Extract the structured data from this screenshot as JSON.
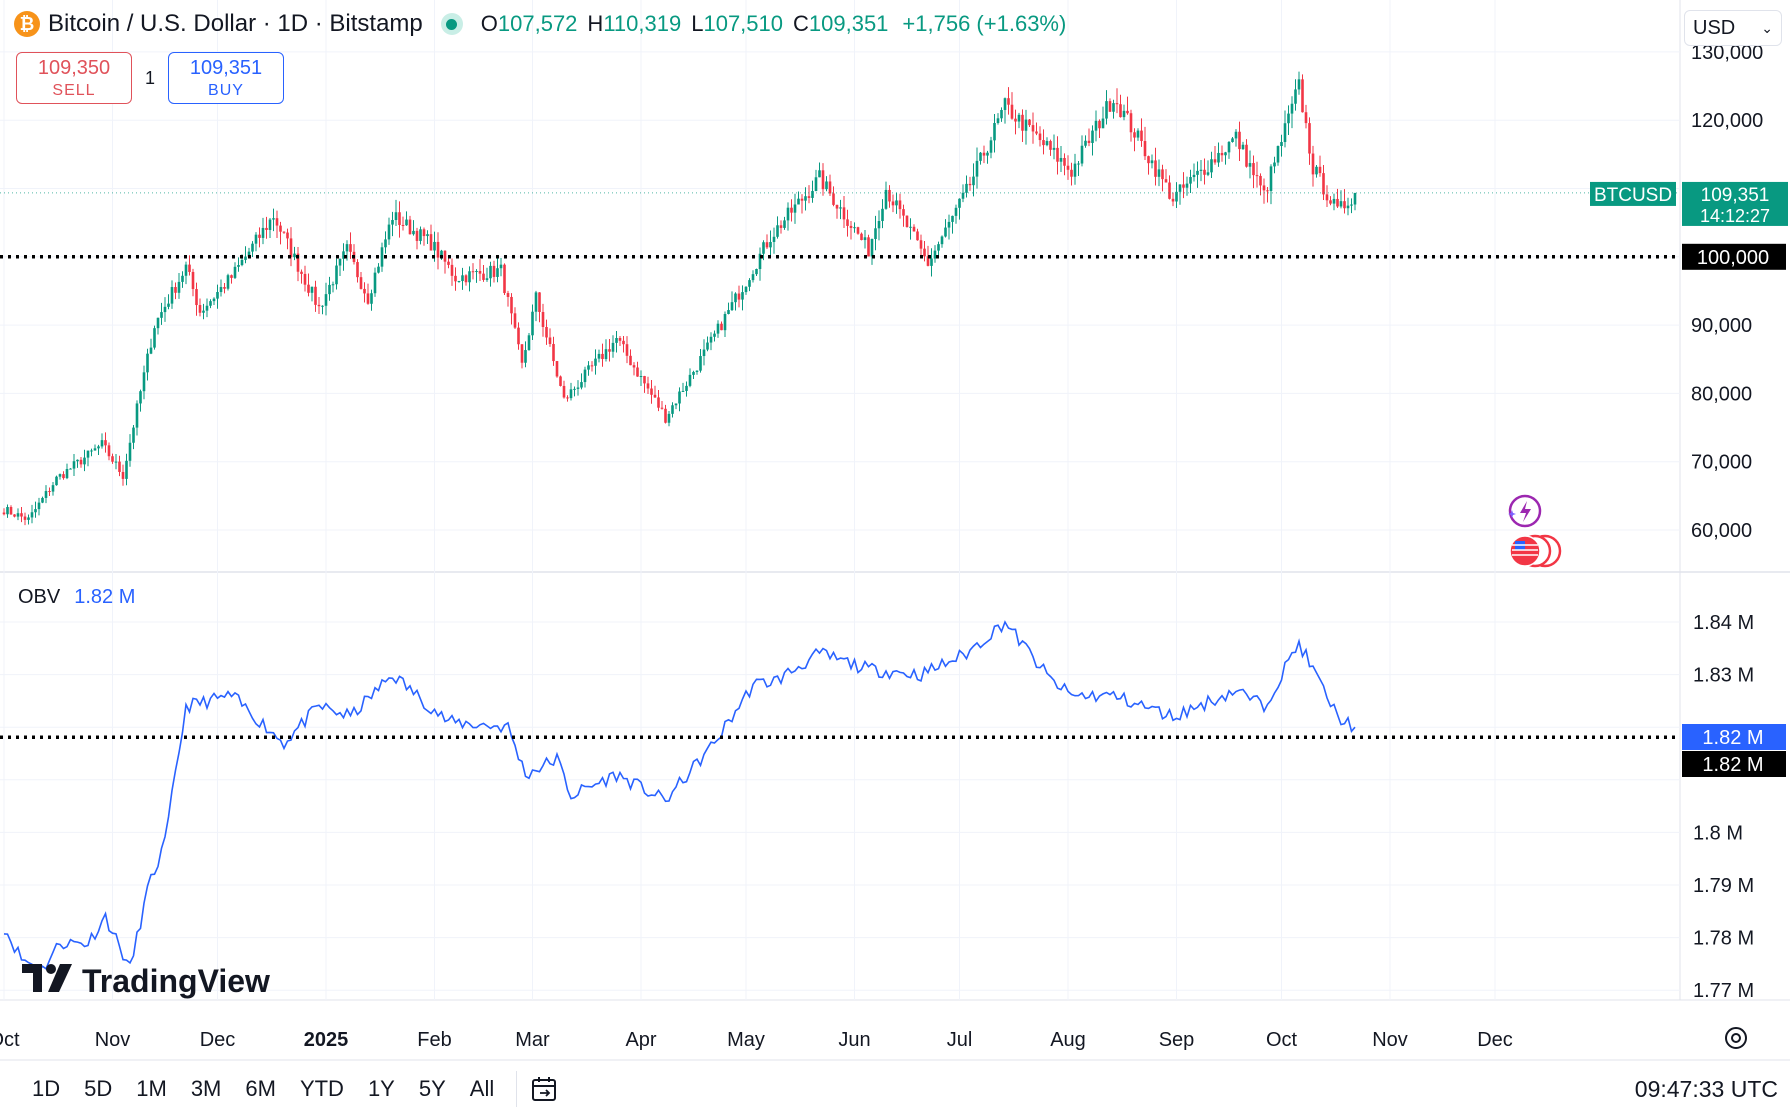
{
  "header": {
    "coin_icon": "bitcoin-icon",
    "coin_glyph": "₿",
    "title": "Bitcoin / U.S. Dollar · 1D · Bitstamp",
    "ohlc": {
      "o_label": "O",
      "o": "107,572",
      "h_label": "H",
      "h": "110,319",
      "l_label": "L",
      "l": "107,510",
      "c_label": "C",
      "c": "109,351"
    },
    "change": "+1,756 (+1.63%)"
  },
  "trade": {
    "sell_price": "109,350",
    "sell_label": "SELL",
    "quantity": "1",
    "buy_price": "109,351",
    "buy_label": "BUY"
  },
  "currency": "USD",
  "price_axis": {
    "ticks": [
      "130,000",
      "120,000",
      "100,000",
      "90,000",
      "80,000",
      "70,000",
      "60,000"
    ],
    "symbol_tag": "BTCUSD",
    "last_price": "109,351",
    "countdown": "14:12:27",
    "cursor_price": "100,000"
  },
  "obv": {
    "name": "OBV",
    "value": "1.82 M",
    "ticks": [
      "1.84 M",
      "1.83 M",
      "1.8 M",
      "1.79 M",
      "1.78 M",
      "1.77 M"
    ],
    "last_label": "1.82 M",
    "cursor_label": "1.82 M"
  },
  "time_axis": [
    "Oct",
    "Nov",
    "Dec",
    "2025",
    "Feb",
    "Mar",
    "Apr",
    "May",
    "Jun",
    "Jul",
    "Aug",
    "Sep",
    "Oct",
    "Nov",
    "Dec"
  ],
  "logo": "TradingView",
  "bottom": {
    "ranges": [
      "1D",
      "5D",
      "1M",
      "3M",
      "6M",
      "YTD",
      "1Y",
      "5Y",
      "All"
    ],
    "clock": "09:47:33 UTC"
  },
  "colors": {
    "up": "#089981",
    "down": "#f23645",
    "obv_line": "#2962ff",
    "grid": "#f0f3fa"
  },
  "chart_data": [
    {
      "type": "candlestick",
      "title": "Bitcoin / U.S. Dollar · 1D · Bitstamp",
      "ylim": [
        57000,
        132000
      ],
      "key_points": [
        {
          "x": "2024-10-01",
          "y": 63000
        },
        {
          "x": "2024-10-08",
          "y": 61500
        },
        {
          "x": "2024-10-16",
          "y": 67500
        },
        {
          "x": "2024-10-29",
          "y": 72500
        },
        {
          "x": "2024-11-04",
          "y": 68000
        },
        {
          "x": "2024-11-13",
          "y": 90000
        },
        {
          "x": "2024-11-22",
          "y": 98500
        },
        {
          "x": "2024-11-26",
          "y": 92000
        },
        {
          "x": "2024-12-05",
          "y": 97000
        },
        {
          "x": "2024-12-17",
          "y": 106000
        },
        {
          "x": "2024-12-30",
          "y": 92500
        },
        {
          "x": "2025-01-07",
          "y": 101000
        },
        {
          "x": "2025-01-13",
          "y": 94000
        },
        {
          "x": "2025-01-20",
          "y": 106000
        },
        {
          "x": "2025-01-31",
          "y": 102000
        },
        {
          "x": "2025-02-07",
          "y": 97000
        },
        {
          "x": "2025-02-20",
          "y": 98000
        },
        {
          "x": "2025-02-26",
          "y": 84000
        },
        {
          "x": "2025-03-02",
          "y": 94000
        },
        {
          "x": "2025-03-10",
          "y": 79000
        },
        {
          "x": "2025-03-25",
          "y": 88000
        },
        {
          "x": "2025-04-08",
          "y": 76500
        },
        {
          "x": "2025-04-21",
          "y": 87500
        },
        {
          "x": "2025-05-01",
          "y": 96500
        },
        {
          "x": "2025-05-08",
          "y": 103000
        },
        {
          "x": "2025-05-22",
          "y": 111500
        },
        {
          "x": "2025-06-05",
          "y": 101000
        },
        {
          "x": "2025-06-10",
          "y": 110000
        },
        {
          "x": "2025-06-22",
          "y": 99000
        },
        {
          "x": "2025-07-03",
          "y": 109500
        },
        {
          "x": "2025-07-14",
          "y": 122000
        },
        {
          "x": "2025-08-02",
          "y": 112500
        },
        {
          "x": "2025-08-14",
          "y": 123500
        },
        {
          "x": "2025-08-31",
          "y": 108500
        },
        {
          "x": "2025-09-18",
          "y": 117500
        },
        {
          "x": "2025-09-26",
          "y": 109000
        },
        {
          "x": "2025-10-06",
          "y": 125000
        },
        {
          "x": "2025-10-10",
          "y": 113000
        },
        {
          "x": "2025-10-17",
          "y": 106500
        },
        {
          "x": "2025-10-22",
          "y": 109351
        }
      ],
      "last": 109351,
      "reference_line": 100000
    },
    {
      "type": "line",
      "title": "OBV",
      "ylim": [
        1.768,
        1.845
      ],
      "series": [
        {
          "name": "OBV",
          "points": [
            {
              "x": "2024-10-01",
              "y": 1.782
            },
            {
              "x": "2024-10-06",
              "y": 1.776
            },
            {
              "x": "2024-10-12",
              "y": 1.774
            },
            {
              "x": "2024-10-17",
              "y": 1.779
            },
            {
              "x": "2024-10-25",
              "y": 1.779
            },
            {
              "x": "2024-10-30",
              "y": 1.784
            },
            {
              "x": "2024-11-06",
              "y": 1.774
            },
            {
              "x": "2024-11-11",
              "y": 1.789
            },
            {
              "x": "2024-11-16",
              "y": 1.798
            },
            {
              "x": "2024-11-22",
              "y": 1.824
            },
            {
              "x": "2024-12-05",
              "y": 1.826
            },
            {
              "x": "2024-12-20",
              "y": 1.817
            },
            {
              "x": "2024-12-30",
              "y": 1.824
            },
            {
              "x": "2025-01-08",
              "y": 1.822
            },
            {
              "x": "2025-01-20",
              "y": 1.83
            },
            {
              "x": "2025-02-05",
              "y": 1.821
            },
            {
              "x": "2025-02-22",
              "y": 1.82
            },
            {
              "x": "2025-02-27",
              "y": 1.811
            },
            {
              "x": "2025-03-08",
              "y": 1.814
            },
            {
              "x": "2025-03-12",
              "y": 1.807
            },
            {
              "x": "2025-03-25",
              "y": 1.811
            },
            {
              "x": "2025-04-08",
              "y": 1.806
            },
            {
              "x": "2025-04-22",
              "y": 1.817
            },
            {
              "x": "2025-05-03",
              "y": 1.828
            },
            {
              "x": "2025-05-10",
              "y": 1.829
            },
            {
              "x": "2025-05-22",
              "y": 1.834
            },
            {
              "x": "2025-06-05",
              "y": 1.831
            },
            {
              "x": "2025-06-20",
              "y": 1.83
            },
            {
              "x": "2025-07-03",
              "y": 1.834
            },
            {
              "x": "2025-07-14",
              "y": 1.84
            },
            {
              "x": "2025-07-27",
              "y": 1.829
            },
            {
              "x": "2025-08-02",
              "y": 1.826
            },
            {
              "x": "2025-08-14",
              "y": 1.826
            },
            {
              "x": "2025-08-31",
              "y": 1.822
            },
            {
              "x": "2025-09-18",
              "y": 1.827
            },
            {
              "x": "2025-09-26",
              "y": 1.824
            },
            {
              "x": "2025-10-06",
              "y": 1.836
            },
            {
              "x": "2025-10-17",
              "y": 1.822
            },
            {
              "x": "2025-10-22",
              "y": 1.82
            }
          ]
        }
      ],
      "reference_line": 1.82
    }
  ]
}
